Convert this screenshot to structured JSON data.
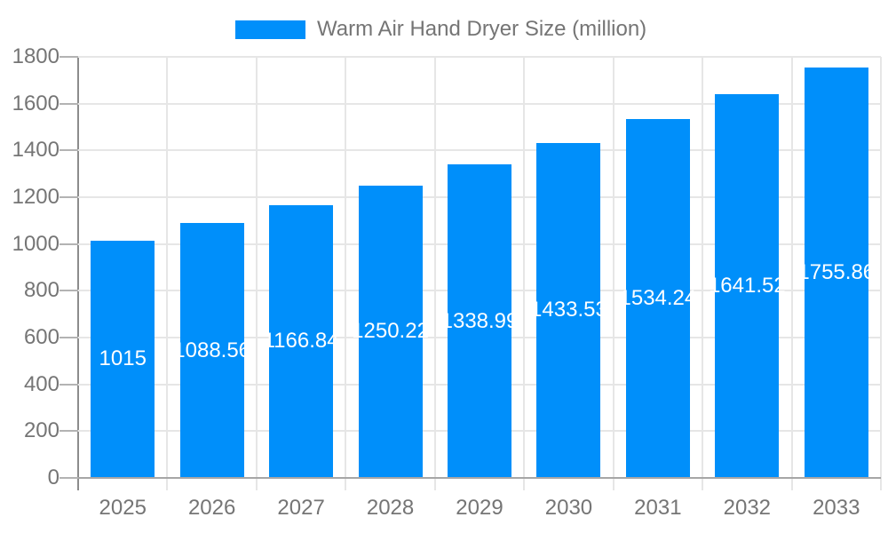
{
  "legend": {
    "label": "Warm Air Hand Dryer Size (million)"
  },
  "chart_data": {
    "type": "bar",
    "title": "Warm Air Hand Dryer Size (million)",
    "categories": [
      "2025",
      "2026",
      "2027",
      "2028",
      "2029",
      "2030",
      "2031",
      "2032",
      "2033"
    ],
    "series": [
      {
        "name": "Warm Air Hand Dryer Size (million)",
        "values": [
          1015,
          1088.56,
          1166.84,
          1250.22,
          1338.99,
          1433.53,
          1534.24,
          1641.52,
          1755.86
        ]
      }
    ],
    "data_labels": [
      "1015",
      "1088.56",
      "1166.84",
      "1250.22",
      "1338.99",
      "1433.53",
      "1534.24",
      "1641.52",
      "1755.86"
    ],
    "xlabel": "",
    "ylabel": "",
    "ylim": [
      0,
      1800
    ],
    "yticks": [
      0,
      200,
      400,
      600,
      800,
      1000,
      1200,
      1400,
      1600,
      1800
    ],
    "grid": true,
    "legend_position": "top"
  },
  "colors": {
    "background": "#ffffff",
    "bar": "#008ffa",
    "grid": "#e6e6e6",
    "y_axis_line": "#8c8c8c",
    "x_axis_line": "#a6a6a6",
    "tick": "#b3b3b3",
    "text": "#757575",
    "bar_label": "#ffffff"
  }
}
